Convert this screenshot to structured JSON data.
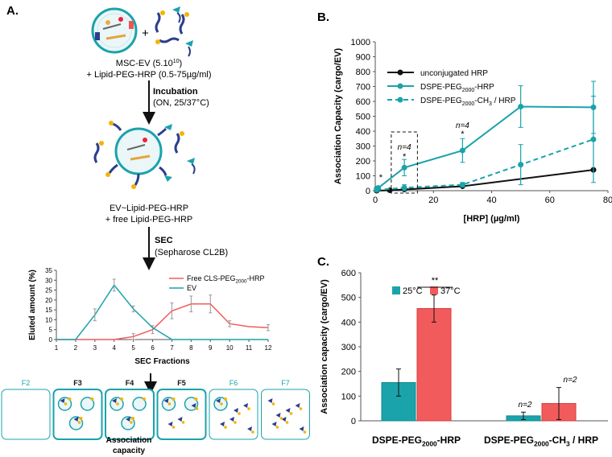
{
  "panelA": {
    "label": "A.",
    "stage1_line1": "MSC-EV (5.10",
    "stage1_exp": "10",
    "stage1_line1_end": ")",
    "stage1_line2": "+ Lipid-PEG-HRP (0.5-75µg/ml)",
    "plus_symbol": "+",
    "step1_title": "Incubation",
    "step1_detail": "(ON, 25/37°C)",
    "stage2_line1": "EV~Lipid-PEG-HRP",
    "stage2_line2": "+ free Lipid-PEG-HRP",
    "step2_title": "SEC",
    "step2_detail": "(Sepharose CL2B)",
    "fractions": [
      "F2",
      "F3",
      "F4",
      "F5",
      "F6",
      "F7"
    ],
    "assoc_line1": "Association",
    "assoc_line2": "capacity"
  },
  "colors": {
    "teal": "#1aa3ab",
    "teal_dark": "#138a8f",
    "red": "#f25b5b",
    "red_dark": "#d63c3c",
    "black": "#111111",
    "gray": "#888888"
  },
  "chart_data": [
    {
      "id": "sec",
      "type": "line",
      "title": "",
      "xlabel": "SEC Fractions",
      "ylabel": "Eluted amount (%)",
      "xlim": [
        1,
        12
      ],
      "ylim": [
        0,
        35
      ],
      "xticks": [
        "1",
        "2",
        "3",
        "4",
        "5",
        "6",
        "7",
        "8",
        "9",
        "10",
        "11",
        "12"
      ],
      "yticks": [
        "0",
        "5",
        "10",
        "15",
        "20",
        "25",
        "30",
        "35"
      ],
      "legend_position": "top-right",
      "series": [
        {
          "name": "Free CLS-PEG2000-HRP",
          "label_main": "Free CLS-PEG",
          "label_sub": "2000",
          "label_tail": "-HRP",
          "color": "#f25b5b",
          "x": [
            1,
            2,
            3,
            4,
            5,
            6,
            7,
            8,
            9,
            10,
            11,
            12
          ],
          "y": [
            0,
            0,
            0,
            0,
            1.5,
            5,
            14.5,
            18,
            18,
            8,
            6.5,
            6
          ],
          "err": [
            0,
            0,
            0,
            0,
            1.5,
            2,
            4,
            4,
            4.5,
            1.5,
            0,
            1.5
          ]
        },
        {
          "name": "EV",
          "label_main": "EV",
          "label_sub": "",
          "label_tail": "",
          "color": "#1aa3ab",
          "x": [
            1,
            2,
            3,
            4,
            5,
            6,
            7,
            8,
            9,
            10,
            11,
            12
          ],
          "y": [
            0,
            0,
            12.5,
            27.5,
            15.5,
            6,
            0,
            0,
            0,
            0,
            0,
            0
          ],
          "err": [
            0,
            0,
            3,
            3,
            1.5,
            0,
            0,
            0,
            0,
            0,
            0,
            0
          ]
        }
      ]
    },
    {
      "id": "B",
      "panel_label": "B.",
      "type": "line",
      "title": "",
      "xlabel": "[HRP] (µg/ml)",
      "ylabel": "Association Capacity (cargo/EV)",
      "xlim": [
        0,
        80
      ],
      "ylim": [
        0,
        1000
      ],
      "xticks": [
        "0",
        "20",
        "40",
        "60",
        "80"
      ],
      "yticks": [
        "0",
        "100",
        "200",
        "300",
        "400",
        "500",
        "600",
        "700",
        "800",
        "900",
        "1000"
      ],
      "legend_position": "top-left",
      "series": [
        {
          "name": "unconjugated HRP",
          "label_main": "unconjugated HRP",
          "label_sub": "",
          "label_tail": "",
          "color": "#111111",
          "dashed": false,
          "x": [
            0.5,
            5,
            10,
            30,
            75
          ],
          "y": [
            0,
            3,
            8,
            30,
            140
          ],
          "err": [
            0,
            0,
            0,
            0,
            0
          ]
        },
        {
          "name": "DSPE-PEG2000-HRP",
          "label_main": "DSPE-PEG",
          "label_sub": "2000",
          "label_tail": "-HRP",
          "color": "#1aa3ab",
          "dashed": false,
          "x": [
            0.5,
            1,
            10,
            30,
            50,
            75
          ],
          "y": [
            15,
            18,
            155,
            270,
            565,
            560
          ],
          "err": [
            0,
            10,
            55,
            80,
            140,
            175
          ]
        },
        {
          "name": "DSPE-PEG2000-CH3 / HRP",
          "label_main": "DSPE-PEG",
          "label_sub": "2000",
          "label_tail": "-CH",
          "label_sub2": "3",
          "label_tail2": " / HRP",
          "color": "#1aa3ab",
          "dashed": true,
          "x": [
            0.5,
            10,
            30,
            50,
            75
          ],
          "y": [
            5,
            20,
            40,
            175,
            345
          ],
          "err": [
            0,
            20,
            15,
            135,
            290
          ]
        }
      ],
      "annotations": [
        "*",
        "n=4",
        "*",
        "n=4",
        "*"
      ]
    },
    {
      "id": "C",
      "panel_label": "C.",
      "type": "bar",
      "title": "",
      "xlabel": "",
      "ylabel": "Association capacity (cargo/EV)",
      "ylim": [
        0,
        600
      ],
      "yticks": [
        "0",
        "100",
        "200",
        "300",
        "400",
        "500",
        "600"
      ],
      "legend_position": "top-left",
      "categories": [
        "DSPE-PEG2000-HRP",
        "DSPE-PEG2000-CH3 / HRP"
      ],
      "category_labels": [
        {
          "main": "DSPE-PEG",
          "sub": "2000",
          "tail": "-HRP",
          "sub2": "",
          "tail2": ""
        },
        {
          "main": "DSPE-PEG",
          "sub": "2000",
          "tail": "-CH",
          "sub2": "3",
          "tail2": "  / HRP"
        }
      ],
      "series": [
        {
          "name": "25°C",
          "color": "#1aa3ab",
          "values": [
            155,
            20
          ],
          "err": [
            55,
            15
          ]
        },
        {
          "name": "37°C",
          "color": "#f25b5b",
          "values": [
            455,
            70
          ],
          "err": [
            55,
            65
          ]
        }
      ],
      "annotations": {
        "sig": "**",
        "n1": "n=2",
        "n2": "n=2"
      }
    }
  ]
}
